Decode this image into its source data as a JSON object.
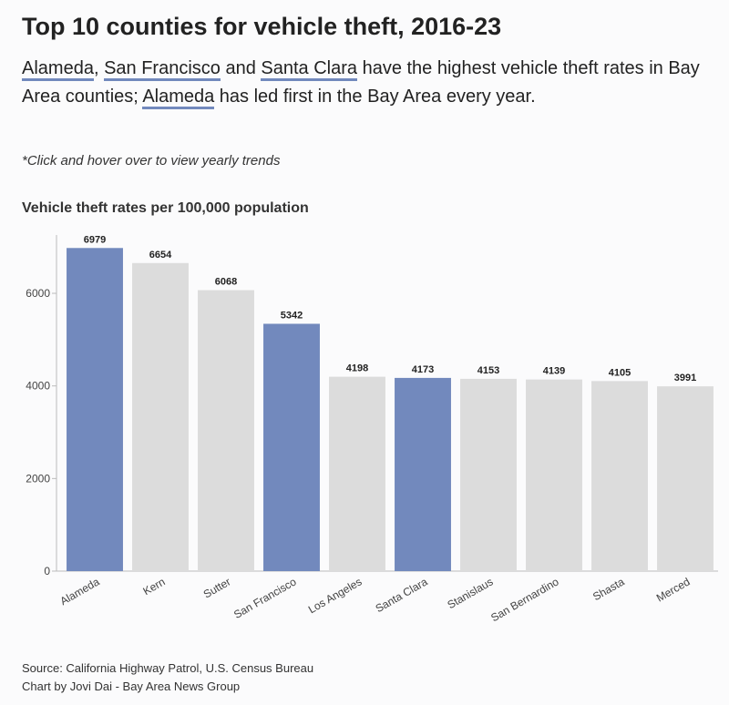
{
  "chart_data": {
    "type": "bar",
    "title": "Top 10 counties for vehicle theft, 2016-23",
    "subtitle_parts": [
      {
        "text": "Alameda",
        "highlight": true
      },
      {
        "text": ", ",
        "highlight": false
      },
      {
        "text": "San Francisco",
        "highlight": true
      },
      {
        "text": " and ",
        "highlight": false
      },
      {
        "text": "Santa Clara",
        "highlight": true
      },
      {
        "text": " have the highest vehicle theft rates in Bay Area counties; ",
        "highlight": false
      },
      {
        "text": "Alameda",
        "highlight": true
      },
      {
        "text": " has led first in the Bay Area every year.",
        "highlight": false
      }
    ],
    "annotation": "*Click and hover over to view yearly trends",
    "y_label": "Vehicle theft rates per 100,000 population",
    "categories": [
      "Alameda",
      "Kern",
      "Sutter",
      "San Francisco",
      "Los Angeles",
      "Santa Clara",
      "Stanislaus",
      "San Bernardino",
      "Shasta",
      "Merced"
    ],
    "values": [
      6979,
      6654,
      6068,
      5342,
      4198,
      4173,
      4153,
      4139,
      4105,
      3991
    ],
    "colors": [
      "#7289bd",
      "#dcdcdc",
      "#dcdcdc",
      "#7289bd",
      "#dcdcdc",
      "#7289bd",
      "#dcdcdc",
      "#dcdcdc",
      "#dcdcdc",
      "#dcdcdc"
    ],
    "ylim": [
      0,
      7250
    ],
    "yticks": [
      0,
      2000,
      4000,
      6000
    ],
    "grid": false,
    "source": [
      "Source: California Highway Patrol, U.S. Census Bureau",
      "Chart by Jovi Dai - Bay Area News Group"
    ]
  }
}
